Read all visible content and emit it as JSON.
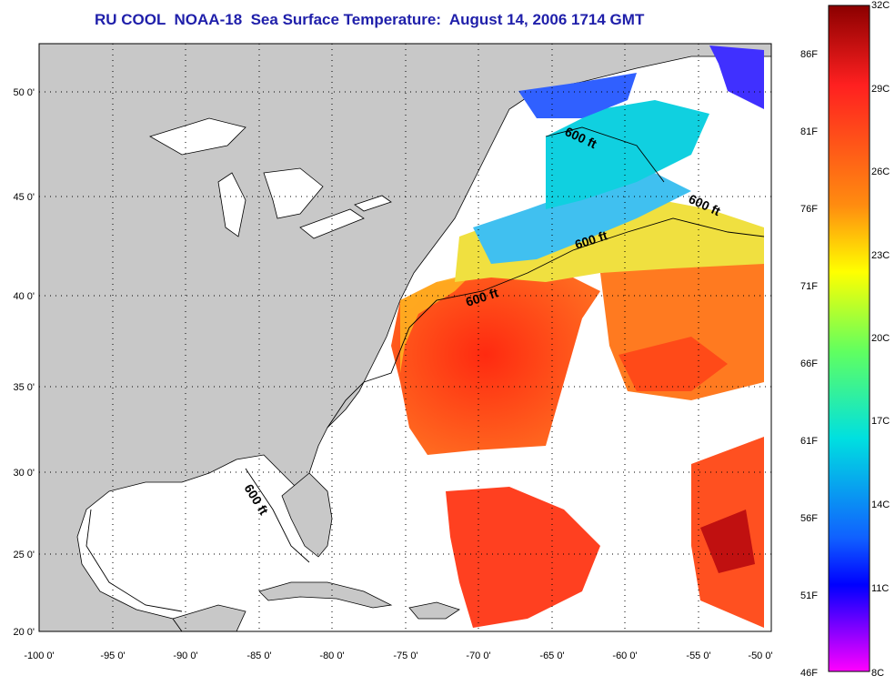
{
  "title": "RU COOL  NOAA-18  Sea Surface Temperature:  August 14, 2006 1714 GMT",
  "axes": {
    "x_ticks": [
      "-100 0'",
      "-95 0'",
      "-90 0'",
      "-85 0'",
      "-80 0'",
      "-75 0'",
      "-70 0'",
      "-65 0'",
      "-60 0'",
      "-55 0'",
      "-50 0'"
    ],
    "y_ticks": [
      "20 0'",
      "25 0'",
      "30 0'",
      "35 0'",
      "40 0'",
      "45 0'",
      "50 0'"
    ]
  },
  "isobath_labels": [
    "600 ft",
    "600 ft",
    "600 ft",
    "600 ft",
    "600 ft"
  ],
  "colorbar": {
    "celsius": [
      "32C",
      "29C",
      "26C",
      "23C",
      "20C",
      "17C",
      "14C",
      "11C",
      "8C"
    ],
    "fahrenheit": [
      "86F",
      "81F",
      "76F",
      "71F",
      "66F",
      "61F",
      "56F",
      "51F",
      "46F"
    ]
  },
  "colors": {
    "title": "#1f1faa",
    "land": "#c8c8c8",
    "no_data": "#ffffff",
    "colorbar_stops": [
      "#8b0000",
      "#ff2020",
      "#ff8c10",
      "#ffff00",
      "#80ff40",
      "#00e0e0",
      "#2080ff",
      "#0000ff",
      "#ff00ff"
    ]
  }
}
